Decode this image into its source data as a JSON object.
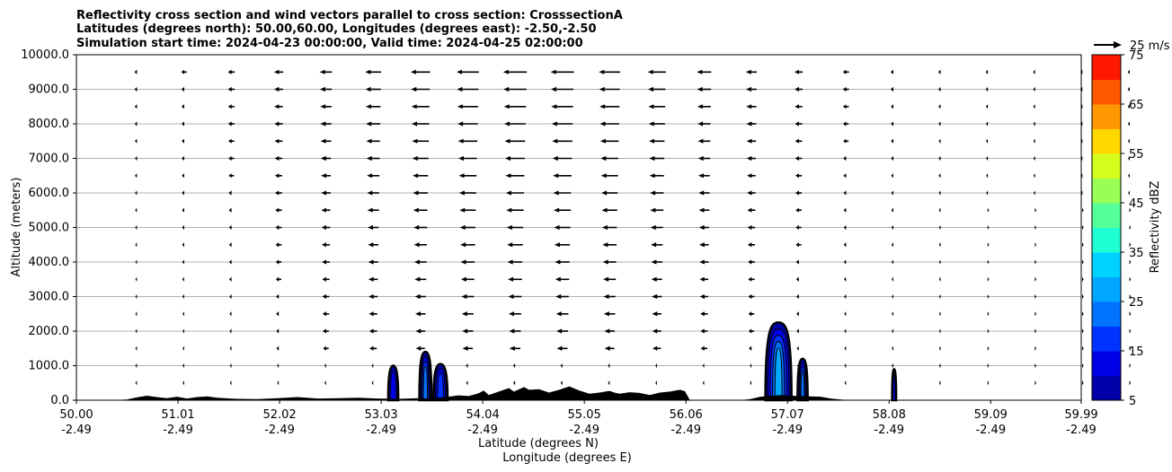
{
  "chart_data": {
    "type": "cross-section",
    "title_lines": [
      "Reflectivity cross section and wind vectors parallel to cross section: CrosssectionA",
      "Latitudes (degrees north): 50.00,60.00, Longitudes (degrees east): -2.50,-2.50",
      "Simulation start time: 2024-04-23 00:00:00, Valid time: 2024-04-25 02:00:00"
    ],
    "ylabel": "Altitude (meters)",
    "xlabel_lat": "Latitude (degrees N)",
    "xlabel_lon": "Longitude (degrees E)",
    "ylim": [
      0,
      10000
    ],
    "xlim": [
      50.0,
      59.99
    ],
    "y_ticks": [
      "0.0",
      "1000.0",
      "2000.0",
      "3000.0",
      "4000.0",
      "5000.0",
      "6000.0",
      "7000.0",
      "8000.0",
      "9000.0",
      "10000.0"
    ],
    "y_tick_values": [
      0,
      1000,
      2000,
      3000,
      4000,
      5000,
      6000,
      7000,
      8000,
      9000,
      10000
    ],
    "x_tick_values": [
      50.0,
      51.01,
      52.02,
      53.03,
      54.04,
      55.05,
      56.06,
      57.07,
      58.08,
      59.09,
      59.99
    ],
    "x_ticks_lat": [
      "50.00",
      "51.01",
      "52.02",
      "53.03",
      "54.04",
      "55.05",
      "56.06",
      "57.07",
      "58.08",
      "59.09",
      "59.99"
    ],
    "x_ticks_lon": [
      "-2.49",
      "-2.49",
      "-2.49",
      "-2.49",
      "-2.49",
      "-2.49",
      "-2.49",
      "-2.49",
      "-2.49",
      "-2.49",
      "-2.49"
    ],
    "horizontal_grid": true,
    "quiver_key_label": "25 m/s",
    "colorbar": {
      "label": "Reflectivity dBZ",
      "levels": [
        5,
        10,
        15,
        20,
        25,
        30,
        35,
        40,
        45,
        50,
        55,
        60,
        65,
        70,
        75
      ],
      "tick_labels": [
        "5",
        "15",
        "25",
        "35",
        "45",
        "55",
        "65",
        "75"
      ],
      "tick_values": [
        5,
        15,
        25,
        35,
        45,
        55,
        65,
        75
      ],
      "colors": [
        "#0000a8",
        "#0000e6",
        "#0033ff",
        "#0073ff",
        "#00a6ff",
        "#00d2ff",
        "#1effd4",
        "#55ff99",
        "#99ff55",
        "#d4ff1e",
        "#ffd800",
        "#ff9800",
        "#ff5800",
        "#ff1800",
        "#a80000"
      ]
    },
    "terrain_color": "#000000",
    "terrain": [
      [
        50.0,
        0
      ],
      [
        50.3,
        0
      ],
      [
        50.5,
        20
      ],
      [
        50.6,
        80
      ],
      [
        50.7,
        130
      ],
      [
        50.8,
        90
      ],
      [
        50.9,
        60
      ],
      [
        51.0,
        100
      ],
      [
        51.1,
        50
      ],
      [
        51.2,
        90
      ],
      [
        51.3,
        110
      ],
      [
        51.4,
        70
      ],
      [
        51.6,
        40
      ],
      [
        51.8,
        30
      ],
      [
        52.0,
        60
      ],
      [
        52.2,
        90
      ],
      [
        52.4,
        50
      ],
      [
        52.6,
        60
      ],
      [
        52.8,
        70
      ],
      [
        53.0,
        50
      ],
      [
        53.2,
        40
      ],
      [
        53.4,
        60
      ],
      [
        53.5,
        50
      ],
      [
        53.7,
        100
      ],
      [
        53.8,
        140
      ],
      [
        53.9,
        120
      ],
      [
        54.0,
        200
      ],
      [
        54.05,
        280
      ],
      [
        54.1,
        150
      ],
      [
        54.2,
        250
      ],
      [
        54.3,
        350
      ],
      [
        54.35,
        250
      ],
      [
        54.45,
        380
      ],
      [
        54.5,
        300
      ],
      [
        54.6,
        320
      ],
      [
        54.7,
        220
      ],
      [
        54.8,
        300
      ],
      [
        54.9,
        400
      ],
      [
        55.0,
        280
      ],
      [
        55.1,
        190
      ],
      [
        55.2,
        220
      ],
      [
        55.3,
        270
      ],
      [
        55.35,
        220
      ],
      [
        55.4,
        190
      ],
      [
        55.5,
        230
      ],
      [
        55.6,
        210
      ],
      [
        55.7,
        150
      ],
      [
        55.8,
        220
      ],
      [
        55.9,
        250
      ],
      [
        56.0,
        300
      ],
      [
        56.05,
        260
      ],
      [
        56.1,
        0
      ],
      [
        56.6,
        0
      ],
      [
        56.7,
        30
      ],
      [
        56.8,
        100
      ],
      [
        57.0,
        150
      ],
      [
        57.2,
        120
      ],
      [
        57.4,
        100
      ],
      [
        57.5,
        50
      ],
      [
        57.6,
        20
      ],
      [
        57.7,
        0
      ],
      [
        59.99,
        0
      ]
    ],
    "reflectivity_cells": [
      {
        "center_lat": 53.47,
        "half_width": 0.06,
        "top": 1400,
        "max_dbz": 22
      },
      {
        "center_lat": 53.62,
        "half_width": 0.07,
        "top": 1050,
        "max_dbz": 18
      },
      {
        "center_lat": 53.15,
        "half_width": 0.05,
        "top": 1000,
        "max_dbz": 12
      },
      {
        "center_lat": 56.98,
        "half_width": 0.13,
        "top": 2250,
        "max_dbz": 28
      },
      {
        "center_lat": 57.22,
        "half_width": 0.05,
        "top": 1200,
        "max_dbz": 20
      },
      {
        "center_lat": 58.13,
        "half_width": 0.02,
        "top": 900,
        "max_dbz": 10
      }
    ],
    "wind_levels_m": [
      500,
      1000,
      1500,
      2000,
      2500,
      3000,
      3500,
      4000,
      4500,
      5000,
      5500,
      6000,
      6500,
      7000,
      7500,
      8000,
      8500,
      9000,
      9500
    ],
    "wind_note": "horizontal component parallel to cross section; strongest westward (negative) flow aloft near 53.5-55.1 N"
  }
}
